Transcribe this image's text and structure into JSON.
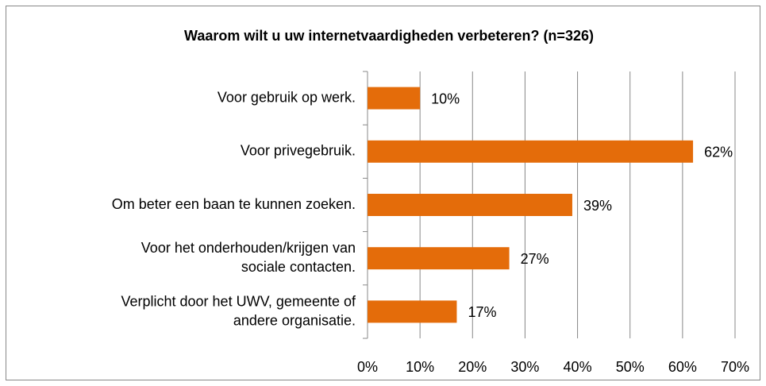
{
  "chart_data": {
    "type": "bar",
    "orientation": "horizontal",
    "title": "Waarom wilt u uw internetvaardigheden verbeteren? (n=326)",
    "categories": [
      "Voor gebruik op werk.",
      "Voor privegebruik.",
      "Om beter een baan te kunnen zoeken.",
      "Voor het onderhouden/krijgen van\nsociale contacten.",
      "Verplicht door het UWV, gemeente of\nandere organisatie."
    ],
    "values": [
      10,
      62,
      39,
      27,
      17
    ],
    "value_labels": [
      "10%",
      "62%",
      "39%",
      "27%",
      "17%"
    ],
    "color": "#e46c0a",
    "xlim": [
      0,
      70
    ],
    "xticks": [
      {
        "value": 0,
        "label": "0%"
      },
      {
        "value": 10,
        "label": "10%"
      },
      {
        "value": 20,
        "label": "20%"
      },
      {
        "value": 30,
        "label": "30%"
      },
      {
        "value": 40,
        "label": "40%"
      },
      {
        "value": 50,
        "label": "50%"
      },
      {
        "value": 60,
        "label": "60%"
      },
      {
        "value": 70,
        "label": "70%"
      }
    ],
    "grid": true
  }
}
